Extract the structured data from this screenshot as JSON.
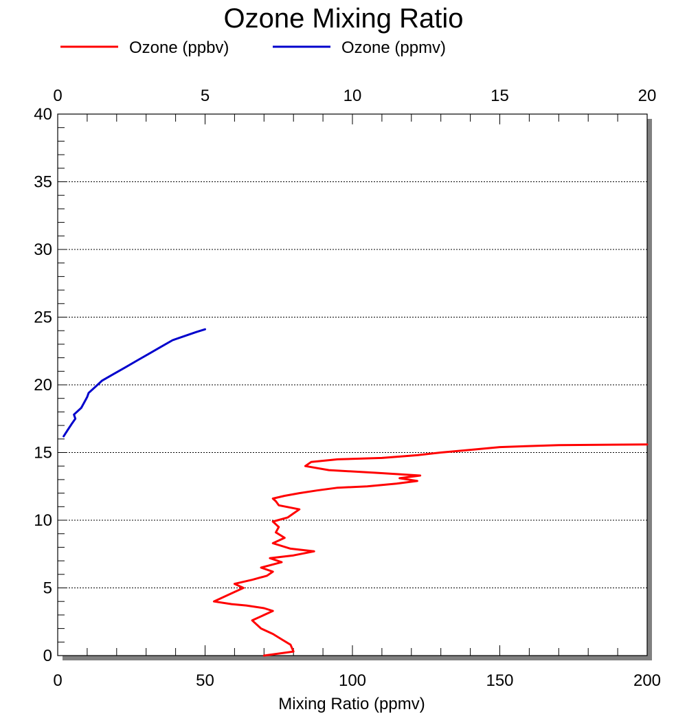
{
  "chart_data": {
    "type": "line",
    "title": "Ozone Mixing Ratio",
    "xlabel": "Mixing Ratio (ppmv)",
    "ylabel": "",
    "grid": "horizontal dotted",
    "legend_position": "top-left",
    "bottom_axis": {
      "range": [
        0,
        200
      ],
      "ticks": [
        "0",
        "50",
        "100",
        "150",
        "200"
      ]
    },
    "top_axis": {
      "range": [
        0,
        20
      ],
      "ticks": [
        "0",
        "5",
        "10",
        "15",
        "20"
      ]
    },
    "y_axis": {
      "range": [
        0,
        40
      ],
      "ticks": [
        "0",
        "5",
        "10",
        "15",
        "20",
        "25",
        "30",
        "35",
        "40"
      ]
    },
    "series": [
      {
        "name": "Ozone (ppbv)",
        "axis": "bottom",
        "color": "#ff0000",
        "x": [
          70,
          80,
          79,
          76,
          73,
          69,
          66,
          73,
          70,
          64,
          59,
          53,
          58,
          63,
          60,
          66,
          71,
          73,
          69,
          76,
          72,
          80,
          87,
          79,
          73,
          77,
          74,
          75,
          73,
          78,
          80,
          82,
          75,
          74,
          73,
          77,
          82,
          88,
          95,
          105,
          115,
          122,
          116,
          123,
          108,
          92,
          84,
          86,
          95,
          110,
          122,
          130,
          140,
          150,
          170,
          200
        ],
        "y": [
          0,
          0.3,
          0.8,
          1.2,
          1.6,
          2.0,
          2.6,
          3.3,
          3.5,
          3.7,
          3.8,
          4.0,
          4.5,
          5.0,
          5.3,
          5.6,
          5.9,
          6.2,
          6.5,
          6.9,
          7.2,
          7.4,
          7.7,
          7.9,
          8.3,
          8.7,
          9.1,
          9.5,
          9.9,
          10.2,
          10.5,
          10.8,
          11.1,
          11.4,
          11.6,
          11.8,
          12.0,
          12.2,
          12.4,
          12.5,
          12.7,
          12.9,
          13.1,
          13.3,
          13.5,
          13.7,
          14.0,
          14.3,
          14.5,
          14.6,
          14.8,
          15.0,
          15.2,
          15.4,
          15.55,
          15.6
        ]
      },
      {
        "name": "Ozone (ppmv)",
        "axis": "top",
        "color": "#0000cc",
        "x": [
          0.2,
          0.35,
          0.5,
          0.6,
          0.55,
          0.8,
          0.9,
          1.0,
          1.05,
          1.3,
          1.5,
          1.9,
          2.3,
          2.7,
          3.1,
          3.5,
          3.9,
          4.3,
          4.7,
          5.0
        ],
        "y": [
          16.2,
          16.7,
          17.2,
          17.5,
          17.8,
          18.3,
          18.7,
          19.1,
          19.4,
          19.9,
          20.3,
          20.8,
          21.3,
          21.8,
          22.3,
          22.8,
          23.3,
          23.6,
          23.9,
          24.1
        ]
      }
    ]
  }
}
